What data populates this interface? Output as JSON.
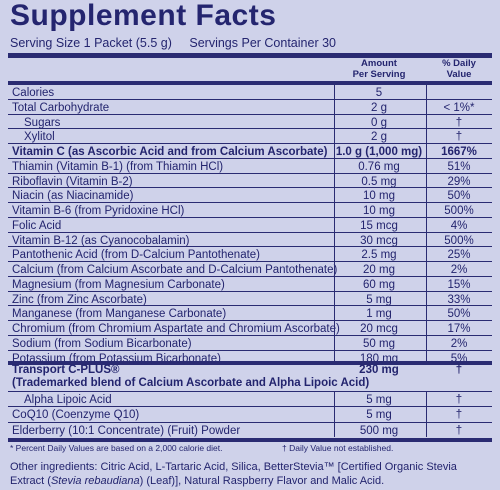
{
  "title": "Supplement Facts",
  "serving_size": "Serving Size 1 Packet (5.5 g)",
  "servings_per_container": "Servings Per Container 30",
  "headers": {
    "amount": [
      "Amount",
      "Per Serving"
    ],
    "dv": [
      "% Daily",
      "Value"
    ]
  },
  "rows": [
    {
      "name": "Calories",
      "amount": "5",
      "dv": ""
    },
    {
      "name": "Total Carbohydrate",
      "amount": "2 g",
      "dv": "< 1%*"
    },
    {
      "name": "Sugars",
      "amount": "0 g",
      "dv": "†"
    },
    {
      "name": "Xylitol",
      "amount": "2 g",
      "dv": "†"
    },
    {
      "name": "Vitamin C (as Ascorbic Acid and from Calcium Ascorbate)",
      "amount": "1.0 g (1,000 mg)",
      "dv": "1667%"
    },
    {
      "name": "Thiamin (Vitamin B-1) (from Thiamin HCl)",
      "amount": "0.76 mg",
      "dv": "51%"
    },
    {
      "name": "Riboflavin (Vitamin B-2)",
      "amount": "0.5 mg",
      "dv": "29%"
    },
    {
      "name": "Niacin (as Niacinamide)",
      "amount": "10 mg",
      "dv": "50%"
    },
    {
      "name": "Vitamin B-6 (from Pyridoxine HCl)",
      "amount": "10 mg",
      "dv": "500%"
    },
    {
      "name": "Folic Acid",
      "amount": "15 mcg",
      "dv": "4%"
    },
    {
      "name": "Vitamin B-12 (as Cyanocobalamin)",
      "amount": "30 mcg",
      "dv": "500%"
    },
    {
      "name": "Pantothenic Acid (from D-Calcium Pantothenate)",
      "amount": "2.5 mg",
      "dv": "25%"
    },
    {
      "name": "Calcium (from Calcium Ascorbate and D-Calcium Pantothenate)",
      "amount": "20 mg",
      "dv": "2%"
    },
    {
      "name": "Magnesium (from Magnesium Carbonate)",
      "amount": "60 mg",
      "dv": "15%"
    },
    {
      "name": "Zinc (from Zinc Ascorbate)",
      "amount": "5 mg",
      "dv": "33%"
    },
    {
      "name": "Manganese (from Manganese Carbonate)",
      "amount": "1 mg",
      "dv": "50%"
    },
    {
      "name": "Chromium (from Chromium Aspartate and Chromium Ascorbate)",
      "amount": "20 mcg",
      "dv": "17%"
    },
    {
      "name": "Sodium (from Sodium Bicarbonate)",
      "amount": "50 mg",
      "dv": "2%"
    },
    {
      "name": "Potassium (from Potassium Bicarbonate)",
      "amount": "180 mg",
      "dv": "5%"
    }
  ],
  "transport": {
    "name_line1": "Transport C-PLUS®",
    "name_line2": "(Trademarked blend of Calcium Ascorbate and Alpha Lipoic Acid)",
    "amount": "230 mg",
    "dv": "†"
  },
  "rows2": [
    {
      "name": "Alpha Lipoic Acid",
      "amount": "5 mg",
      "dv": "†"
    },
    {
      "name": "CoQ10 (Coenzyme Q10)",
      "amount": "5 mg",
      "dv": "†"
    },
    {
      "name": "Elderberry (10:1 Concentrate) (Fruit) Powder",
      "amount": "500 mg",
      "dv": "†"
    }
  ],
  "footnote_dv": "* Percent Daily Values are based on a 2,000 calorie diet.",
  "footnote_dagger": "† Daily Value not established.",
  "other_ingredients_a": "Other ingredients: Citric Acid, L-Tartaric Acid, Silica, BetterStevia™ [Certified Organic Stevia Extract (",
  "other_ingredients_italic": "Stevia rebaudiana",
  "other_ingredients_b": ") (Leaf)], Natural Raspberry Flavor and Malic Acid."
}
